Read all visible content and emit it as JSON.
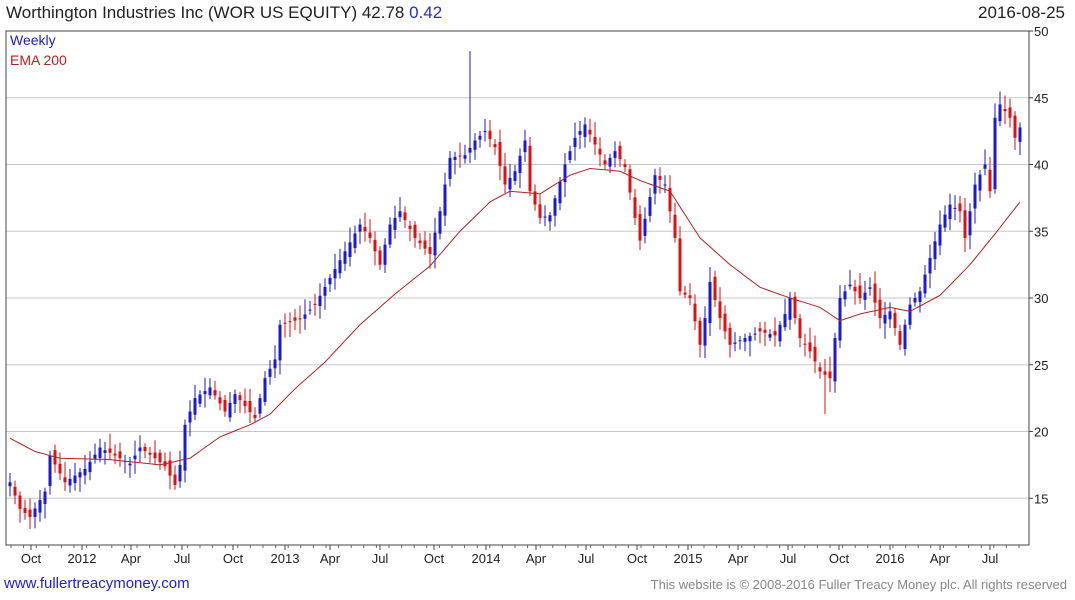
{
  "header": {
    "title": "Worthington Industries Inc (WOR US EQUITY) 42.78",
    "change": "0.42",
    "date": "2016-08-25"
  },
  "footer": {
    "left": "www.fullertreacymoney.com",
    "right": "This website is © 2008-2016 Fuller Treacy Money plc. All rights reserved"
  },
  "colors": {
    "up": "#1a1ad4",
    "down": "#dd1111",
    "ema": "#b22222",
    "grid": "#c8c8c8",
    "legend_weekly": "#1a1ad4",
    "legend_ema": "#b22222"
  },
  "chart_data": {
    "type": "line",
    "title": "Worthington Industries Inc (WOR US EQUITY) 42.78 0.42",
    "frequency": "Weekly",
    "legend": [
      "Weekly",
      "EMA 200"
    ],
    "legend_position": "top-left",
    "ylim": [
      11.5,
      50
    ],
    "y_ticks": [
      15,
      20,
      25,
      30,
      35,
      40,
      45,
      50
    ],
    "grid": true,
    "x_ticks": [
      "Oct",
      "2012",
      "Apr",
      "Jul",
      "Oct",
      "2013",
      "Apr",
      "Jul",
      "Oct",
      "2014",
      "Apr",
      "Jul",
      "Oct",
      "2015",
      "Apr",
      "Jul",
      "Oct",
      "2016",
      "Apr",
      "Jul"
    ],
    "price_path_anchors": [
      [
        0,
        16.2
      ],
      [
        2,
        14.2
      ],
      [
        4,
        13.6
      ],
      [
        7,
        15.5
      ],
      [
        8,
        18.2
      ],
      [
        11,
        16.2
      ],
      [
        15,
        17.2
      ],
      [
        18,
        18.8
      ],
      [
        21,
        18.2
      ],
      [
        24,
        17.6
      ],
      [
        26,
        18.8
      ],
      [
        29,
        18.0
      ],
      [
        31,
        17.4
      ],
      [
        33,
        16.0
      ],
      [
        34,
        17.5
      ],
      [
        35,
        20.5
      ],
      [
        37,
        22.5
      ],
      [
        40,
        23.3
      ],
      [
        43,
        21.5
      ],
      [
        45,
        22.8
      ],
      [
        49,
        21.0
      ],
      [
        51,
        24.0
      ],
      [
        53,
        25.4
      ],
      [
        54,
        28.0
      ],
      [
        58,
        28.4
      ],
      [
        61,
        29.5
      ],
      [
        64,
        31.5
      ],
      [
        67,
        33.5
      ],
      [
        70,
        35.5
      ],
      [
        72,
        34.5
      ],
      [
        74,
        32.5
      ],
      [
        76,
        35.5
      ],
      [
        78,
        36.5
      ],
      [
        81,
        34.5
      ],
      [
        84,
        33.3
      ],
      [
        86,
        36.5
      ],
      [
        88,
        40.5
      ],
      [
        91,
        40.7
      ],
      [
        93,
        41.8
      ],
      [
        95,
        42.5
      ],
      [
        97,
        41.3
      ],
      [
        99,
        38.5
      ],
      [
        101,
        39.5
      ],
      [
        103,
        41.8
      ],
      [
        104,
        38.0
      ],
      [
        106,
        36.0
      ],
      [
        108,
        36.2
      ],
      [
        111,
        40.0
      ],
      [
        113,
        42.0
      ],
      [
        115,
        43.0
      ],
      [
        117,
        41.5
      ],
      [
        119,
        40.0
      ],
      [
        121,
        41.0
      ],
      [
        123,
        39.8
      ],
      [
        125,
        36.0
      ],
      [
        126,
        34.3
      ],
      [
        129,
        39.2
      ],
      [
        131,
        38.5
      ],
      [
        133,
        34.5
      ],
      [
        134,
        30.5
      ],
      [
        136,
        30.0
      ],
      [
        138,
        26.5
      ],
      [
        139,
        28.5
      ],
      [
        140,
        31.2
      ],
      [
        142,
        28.5
      ],
      [
        144,
        26.5
      ],
      [
        147,
        27.0
      ],
      [
        150,
        27.5
      ],
      [
        153,
        27.2
      ],
      [
        155,
        28.8
      ],
      [
        156,
        30.0
      ],
      [
        158,
        27.0
      ],
      [
        160,
        26.0
      ],
      [
        162,
        24.5
      ],
      [
        164,
        24.0
      ],
      [
        165,
        27.0
      ],
      [
        166,
        30.0
      ],
      [
        168,
        31.0
      ],
      [
        170,
        30.0
      ],
      [
        172,
        30.8
      ],
      [
        174,
        28.5
      ],
      [
        176,
        29.0
      ],
      [
        178,
        26.5
      ],
      [
        180,
        29.5
      ],
      [
        182,
        30.5
      ],
      [
        184,
        33.0
      ],
      [
        186,
        35.5
      ],
      [
        188,
        37.0
      ],
      [
        190,
        36.5
      ],
      [
        191,
        34.5
      ],
      [
        193,
        38.5
      ],
      [
        195,
        40.0
      ],
      [
        196,
        38.0
      ],
      [
        197,
        43.5
      ],
      [
        198,
        44.5
      ],
      [
        200,
        43.5
      ],
      [
        201,
        42.0
      ],
      [
        202,
        42.78
      ]
    ],
    "ema_200_anchors": [
      [
        0,
        19.5
      ],
      [
        5,
        18.5
      ],
      [
        10,
        18.0
      ],
      [
        20,
        17.9
      ],
      [
        30,
        17.5
      ],
      [
        36,
        18.0
      ],
      [
        42,
        19.6
      ],
      [
        48,
        20.5
      ],
      [
        52,
        21.3
      ],
      [
        57,
        23.2
      ],
      [
        63,
        25.2
      ],
      [
        70,
        28.0
      ],
      [
        77,
        30.3
      ],
      [
        84,
        32.4
      ],
      [
        90,
        35.0
      ],
      [
        96,
        37.2
      ],
      [
        100,
        38.0
      ],
      [
        106,
        37.8
      ],
      [
        112,
        39.2
      ],
      [
        116,
        39.7
      ],
      [
        122,
        39.5
      ],
      [
        126,
        38.8
      ],
      [
        132,
        38.0
      ],
      [
        138,
        34.5
      ],
      [
        144,
        32.5
      ],
      [
        150,
        30.8
      ],
      [
        156,
        30.0
      ],
      [
        162,
        29.3
      ],
      [
        166,
        28.3
      ],
      [
        170,
        28.8
      ],
      [
        176,
        29.3
      ],
      [
        180,
        29.0
      ],
      [
        186,
        30.2
      ],
      [
        192,
        32.5
      ],
      [
        197,
        34.8
      ],
      [
        202,
        37.2
      ]
    ],
    "notable_extremes": {
      "high_spike_2013_nov": 48.5,
      "low_spike_2015_sep": 21.3,
      "low_2011_oct": 12.7,
      "high_2016_jul": 45.5
    }
  }
}
